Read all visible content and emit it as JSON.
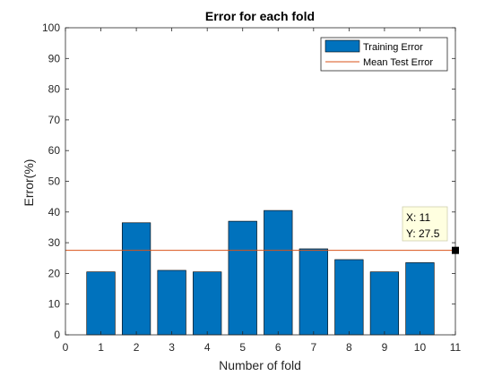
{
  "chart_data": {
    "type": "bar",
    "title": "Error for each fold",
    "xlabel": "Number of fold",
    "ylabel": "Error(%)",
    "xlim": [
      0,
      11
    ],
    "ylim": [
      0,
      100
    ],
    "xticks": [
      0,
      1,
      2,
      3,
      4,
      5,
      6,
      7,
      8,
      9,
      10,
      11
    ],
    "yticks": [
      0,
      10,
      20,
      30,
      40,
      50,
      60,
      70,
      80,
      90,
      100
    ],
    "grid": false,
    "legend_position": "top-right",
    "categories": [
      1,
      2,
      3,
      4,
      5,
      6,
      7,
      8,
      9,
      10
    ],
    "series": [
      {
        "name": "Training Error",
        "type": "bar",
        "color": "#0072BD",
        "values": [
          20.5,
          36.5,
          21,
          20.5,
          37,
          40.5,
          28,
          24.5,
          20.5,
          23.5
        ]
      },
      {
        "name": "Mean Test Error",
        "type": "hline",
        "color": "#D95319",
        "value": 27.5
      }
    ],
    "annotations": [
      {
        "type": "datatip",
        "x": 11,
        "y": 27.5,
        "x_text": "X: 11",
        "y_text": "Y: 27.5"
      }
    ]
  }
}
